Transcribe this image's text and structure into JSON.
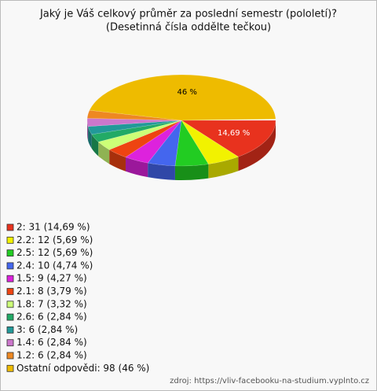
{
  "chart_data": {
    "type": "pie",
    "title": "Jaký je Váš celkový průměr za poslední semestr (pololetí)?",
    "subtitle": "(Desetinná čísla oddělte tečkou)",
    "categories": [
      "2: 31 (14,69 %)",
      "2.2: 12 (5,69 %)",
      "2.5: 12 (5,69 %)",
      "2.4: 10 (4,74 %)",
      "1.5: 9 (4,27 %)",
      "2.1: 8 (3,79 %)",
      "1.8: 7 (3,32 %)",
      "2.6: 6 (2,84 %)",
      "3: 6 (2,84 %)",
      "1.4: 6 (2,84 %)",
      "1.2: 6 (2,84 %)",
      "Ostatní odpovědi: 98 (46 %)"
    ],
    "values": [
      14.69,
      5.69,
      5.69,
      4.74,
      4.27,
      3.79,
      3.32,
      2.84,
      2.84,
      2.84,
      2.84,
      46
    ],
    "value_labels": [
      "14,69 %",
      null,
      null,
      null,
      null,
      null,
      null,
      null,
      null,
      null,
      null,
      "46 %"
    ],
    "colors": [
      "#e8321e",
      "#f2f200",
      "#22cc22",
      "#4466ee",
      "#dd22dd",
      "#ee4411",
      "#ccff77",
      "#22aa66",
      "#229999",
      "#cc77cc",
      "#ee8822",
      "#eebb00"
    ],
    "legend": "bottom-left",
    "source": "zdroj: https://vliv-facebooku-na-studium.vyplnto.cz"
  }
}
